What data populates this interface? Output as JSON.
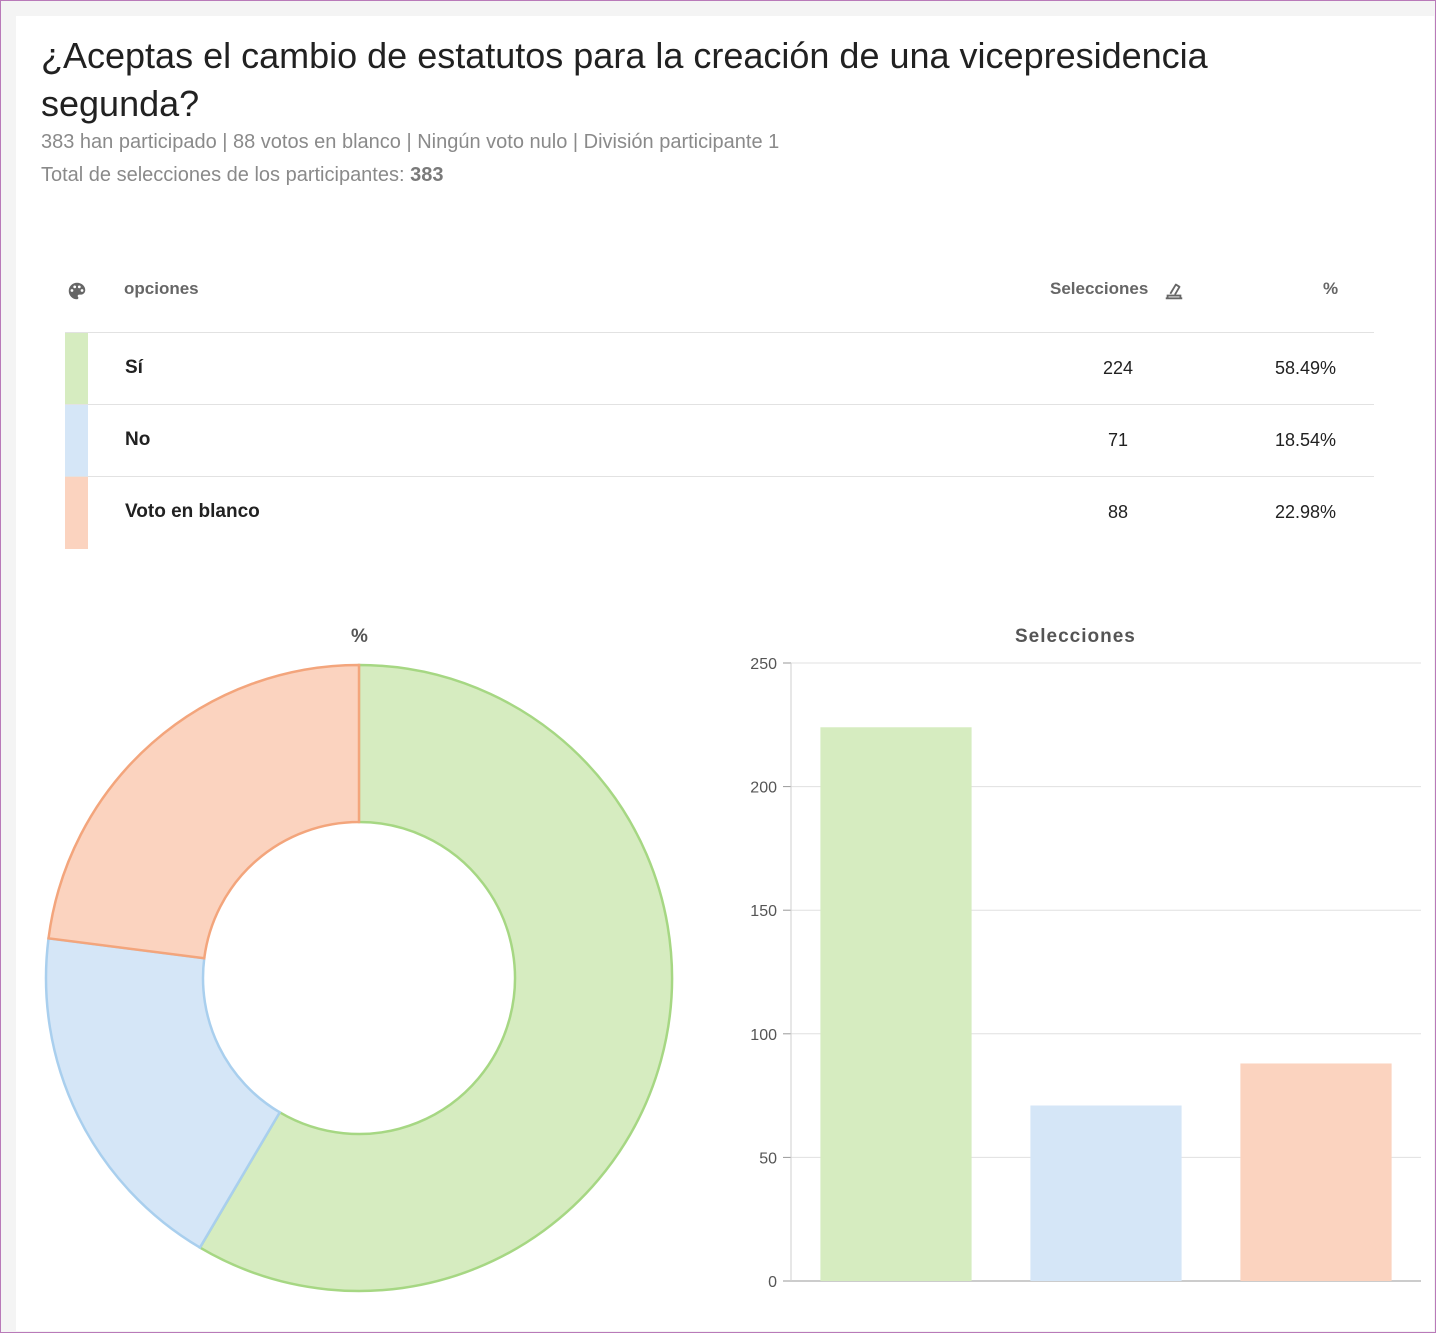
{
  "header": {
    "title": "¿Aceptas el cambio de estatutos para la creación de una vicepresidencia segunda?",
    "meta_line": "383 han participado | 88 votos en blanco | Ningún voto nulo | División participante 1",
    "total_label": "Total de selecciones de los participantes:",
    "total_value": "383"
  },
  "table": {
    "col_color_icon": "palette-icon",
    "col_options": "opciones",
    "col_selections": "Selecciones",
    "col_selections_icon": "ballot-box-icon",
    "col_percent": "%",
    "rows": [
      {
        "label": "Sí",
        "count": "224",
        "percent": "58.49%",
        "color": "#d6ecc0"
      },
      {
        "label": "No",
        "count": "71",
        "percent": "18.54%",
        "color": "#d5e6f7"
      },
      {
        "label": "Voto en blanco",
        "count": "88",
        "percent": "22.98%",
        "color": "#fbd3bf"
      }
    ]
  },
  "chart_data": [
    {
      "type": "pie",
      "variant": "donut",
      "title": "%",
      "categories": [
        "Sí",
        "No",
        "Voto en blanco"
      ],
      "values": [
        58.49,
        18.54,
        22.98
      ],
      "fill_colors": [
        "#d6ecc0",
        "#d5e6f7",
        "#fbd3bf"
      ],
      "stroke_colors": [
        "#a6d783",
        "#a9cfee",
        "#f3a57c"
      ]
    },
    {
      "type": "bar",
      "title": "Selecciones",
      "categories": [
        "Sí",
        "No",
        "Voto en blanco"
      ],
      "values": [
        224,
        71,
        88
      ],
      "ylim": [
        0,
        250
      ],
      "yticks": [
        0,
        50,
        100,
        150,
        200,
        250
      ],
      "grid": true,
      "colors": [
        "#d6ecc0",
        "#d5e6f7",
        "#fbd3bf"
      ]
    }
  ]
}
